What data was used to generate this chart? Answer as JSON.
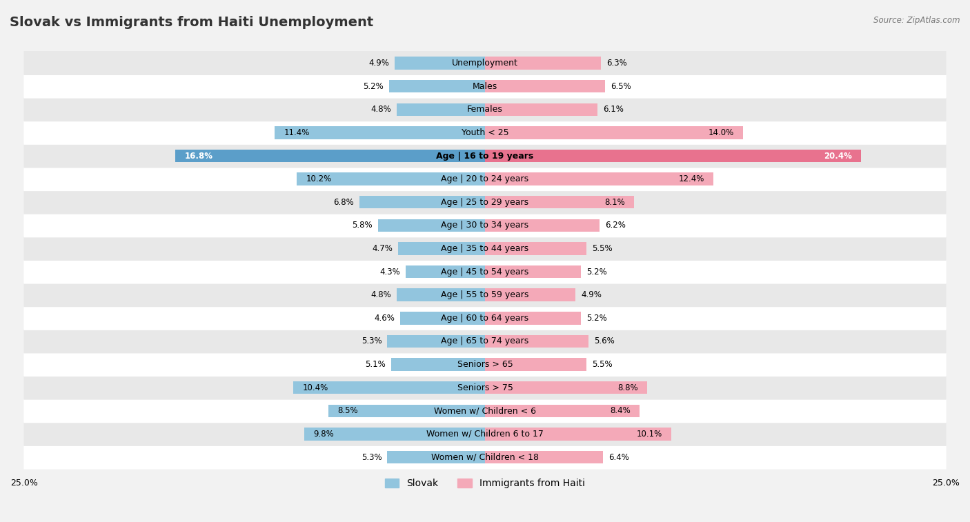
{
  "title": "Slovak vs Immigrants from Haiti Unemployment",
  "source": "Source: ZipAtlas.com",
  "categories": [
    "Unemployment",
    "Males",
    "Females",
    "Youth < 25",
    "Age | 16 to 19 years",
    "Age | 20 to 24 years",
    "Age | 25 to 29 years",
    "Age | 30 to 34 years",
    "Age | 35 to 44 years",
    "Age | 45 to 54 years",
    "Age | 55 to 59 years",
    "Age | 60 to 64 years",
    "Age | 65 to 74 years",
    "Seniors > 65",
    "Seniors > 75",
    "Women w/ Children < 6",
    "Women w/ Children 6 to 17",
    "Women w/ Children < 18"
  ],
  "slovak": [
    4.9,
    5.2,
    4.8,
    11.4,
    16.8,
    10.2,
    6.8,
    5.8,
    4.7,
    4.3,
    4.8,
    4.6,
    5.3,
    5.1,
    10.4,
    8.5,
    9.8,
    5.3
  ],
  "haiti": [
    6.3,
    6.5,
    6.1,
    14.0,
    20.4,
    12.4,
    8.1,
    6.2,
    5.5,
    5.2,
    4.9,
    5.2,
    5.6,
    5.5,
    8.8,
    8.4,
    10.1,
    6.4
  ],
  "slovak_color": "#92c5de",
  "haiti_color": "#f4a9b8",
  "slovak_highlight_color": "#5b9ec9",
  "haiti_highlight_color": "#e8728e",
  "highlight_row": 4,
  "xlim": 25.0,
  "bar_height": 0.55,
  "bg_color": "#f2f2f2",
  "row_color_light": "#ffffff",
  "row_color_dark": "#e8e8e8",
  "label_fontsize": 9.0,
  "value_fontsize": 8.5,
  "title_fontsize": 14,
  "legend_slovak": "Slovak",
  "legend_haiti": "Immigrants from Haiti"
}
